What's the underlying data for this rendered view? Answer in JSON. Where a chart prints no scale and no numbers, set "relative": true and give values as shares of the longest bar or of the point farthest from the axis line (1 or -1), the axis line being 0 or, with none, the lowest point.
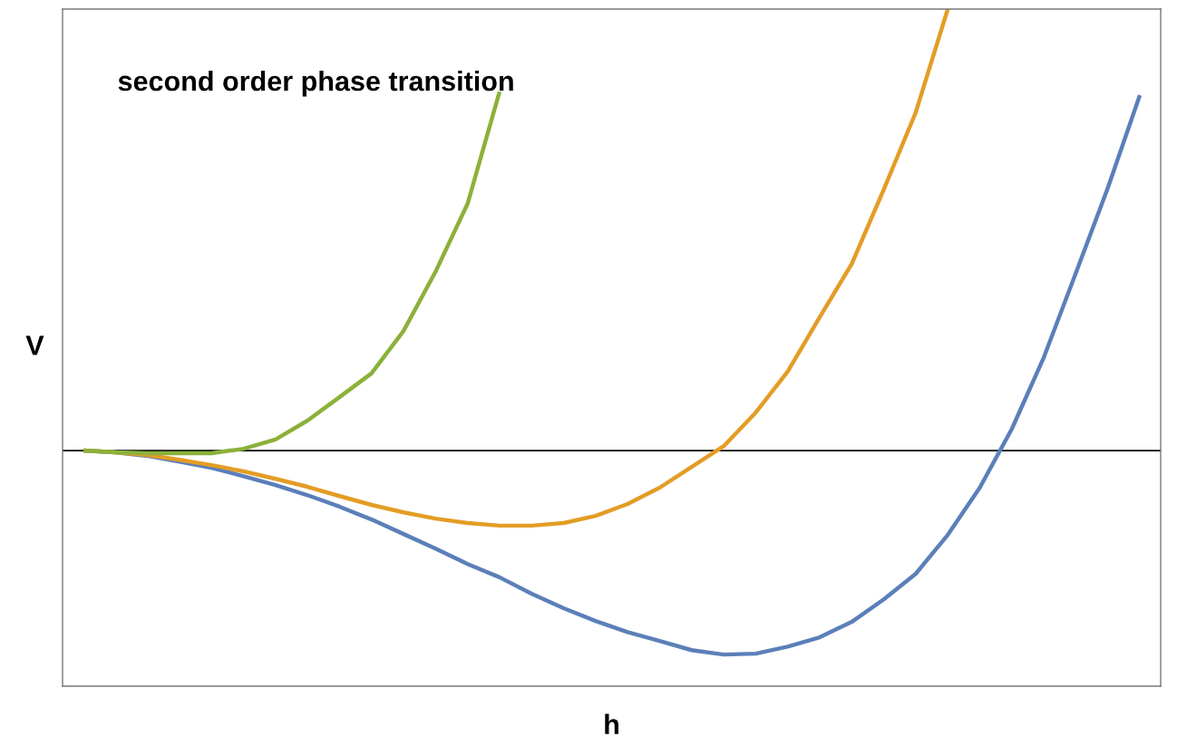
{
  "chart_data": {
    "type": "line",
    "relative": true,
    "xlabel": "h",
    "ylabel": "V",
    "annotations": [
      "second order phase transition"
    ],
    "categories": [
      null,
      null,
      null,
      null,
      null,
      null,
      null,
      null,
      null,
      null,
      null,
      null,
      null,
      null,
      null,
      null,
      null,
      null,
      null,
      null,
      null,
      null,
      null,
      null,
      null,
      null,
      null,
      null,
      null,
      null,
      null,
      null,
      null,
      null
    ],
    "series": [
      {
        "color": "#5b7fb9",
        "values": [
          0,
          -0.004,
          -0.012,
          -0.025,
          -0.039,
          -0.058,
          -0.078,
          -0.101,
          -0.127,
          -0.156,
          -0.189,
          -0.222,
          -0.257,
          -0.287,
          -0.324,
          -0.357,
          -0.386,
          -0.411,
          -0.431,
          -0.452,
          -0.462,
          -0.46,
          -0.444,
          -0.423,
          -0.388,
          -0.337,
          -0.279,
          -0.191,
          -0.084,
          0.049,
          0.211,
          0.402,
          0.595,
          0.805
        ]
      },
      {
        "color": "#e39d26",
        "values": [
          0,
          -0.004,
          -0.01,
          -0.021,
          -0.033,
          -0.047,
          -0.064,
          -0.082,
          -0.103,
          -0.123,
          -0.14,
          -0.154,
          -0.164,
          -0.17,
          -0.17,
          -0.164,
          -0.148,
          -0.121,
          -0.084,
          -0.037,
          0.01,
          0.086,
          0.179,
          0.302,
          0.423,
          0.591,
          0.766,
          1.0,
          null,
          null,
          null,
          null,
          null,
          null
        ]
      },
      {
        "color": "#8bb13a",
        "values": [
          0,
          -0.004,
          -0.006,
          -0.006,
          -0.006,
          0.004,
          0.025,
          0.068,
          0.121,
          0.175,
          0.271,
          0.405,
          0.559,
          0.813,
          null,
          null,
          null,
          null,
          null,
          null,
          null,
          null,
          null,
          null,
          null,
          null,
          null,
          null,
          null,
          null,
          null,
          null,
          null,
          null
        ]
      }
    ],
    "ref_lines": [
      {
        "axis": "y",
        "value": 0,
        "color": "#000000"
      }
    ],
    "marker": "none",
    "line_style": "solid"
  }
}
